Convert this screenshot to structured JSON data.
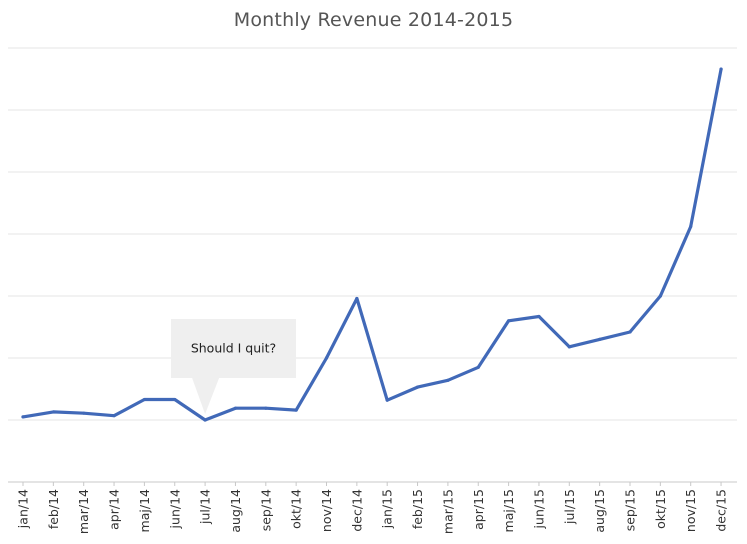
{
  "chart_data": {
    "type": "line",
    "title": "Monthly Revenue 2014-2015",
    "xlabel": "",
    "ylabel": "",
    "categories": [
      "jan/14",
      "feb/14",
      "mar/14",
      "apr/14",
      "maj/14",
      "jun/14",
      "jul/14",
      "aug/14",
      "sep/14",
      "okt/14",
      "nov/14",
      "dec/14",
      "jan/15",
      "feb/15",
      "mar/15",
      "apr/15",
      "maj/15",
      "jun/15",
      "jul/15",
      "aug/15",
      "sep/15",
      "okt/15",
      "nov/15",
      "dec/15"
    ],
    "series": [
      {
        "values": [
          1.05,
          1.13,
          1.11,
          1.07,
          1.33,
          1.33,
          1.0,
          1.19,
          1.19,
          1.16,
          2.0,
          2.96,
          1.32,
          1.53,
          1.64,
          1.85,
          2.6,
          2.67,
          2.18,
          2.3,
          2.42,
          3.0,
          4.12,
          6.66
        ],
        "color": "#4169b8"
      }
    ],
    "ylim": [
      0,
      7
    ],
    "grid": true,
    "y_tick_labels_shown": false,
    "legend": "none",
    "annotations": [
      {
        "text": "Should I quit?",
        "category": "jul/14"
      }
    ]
  }
}
